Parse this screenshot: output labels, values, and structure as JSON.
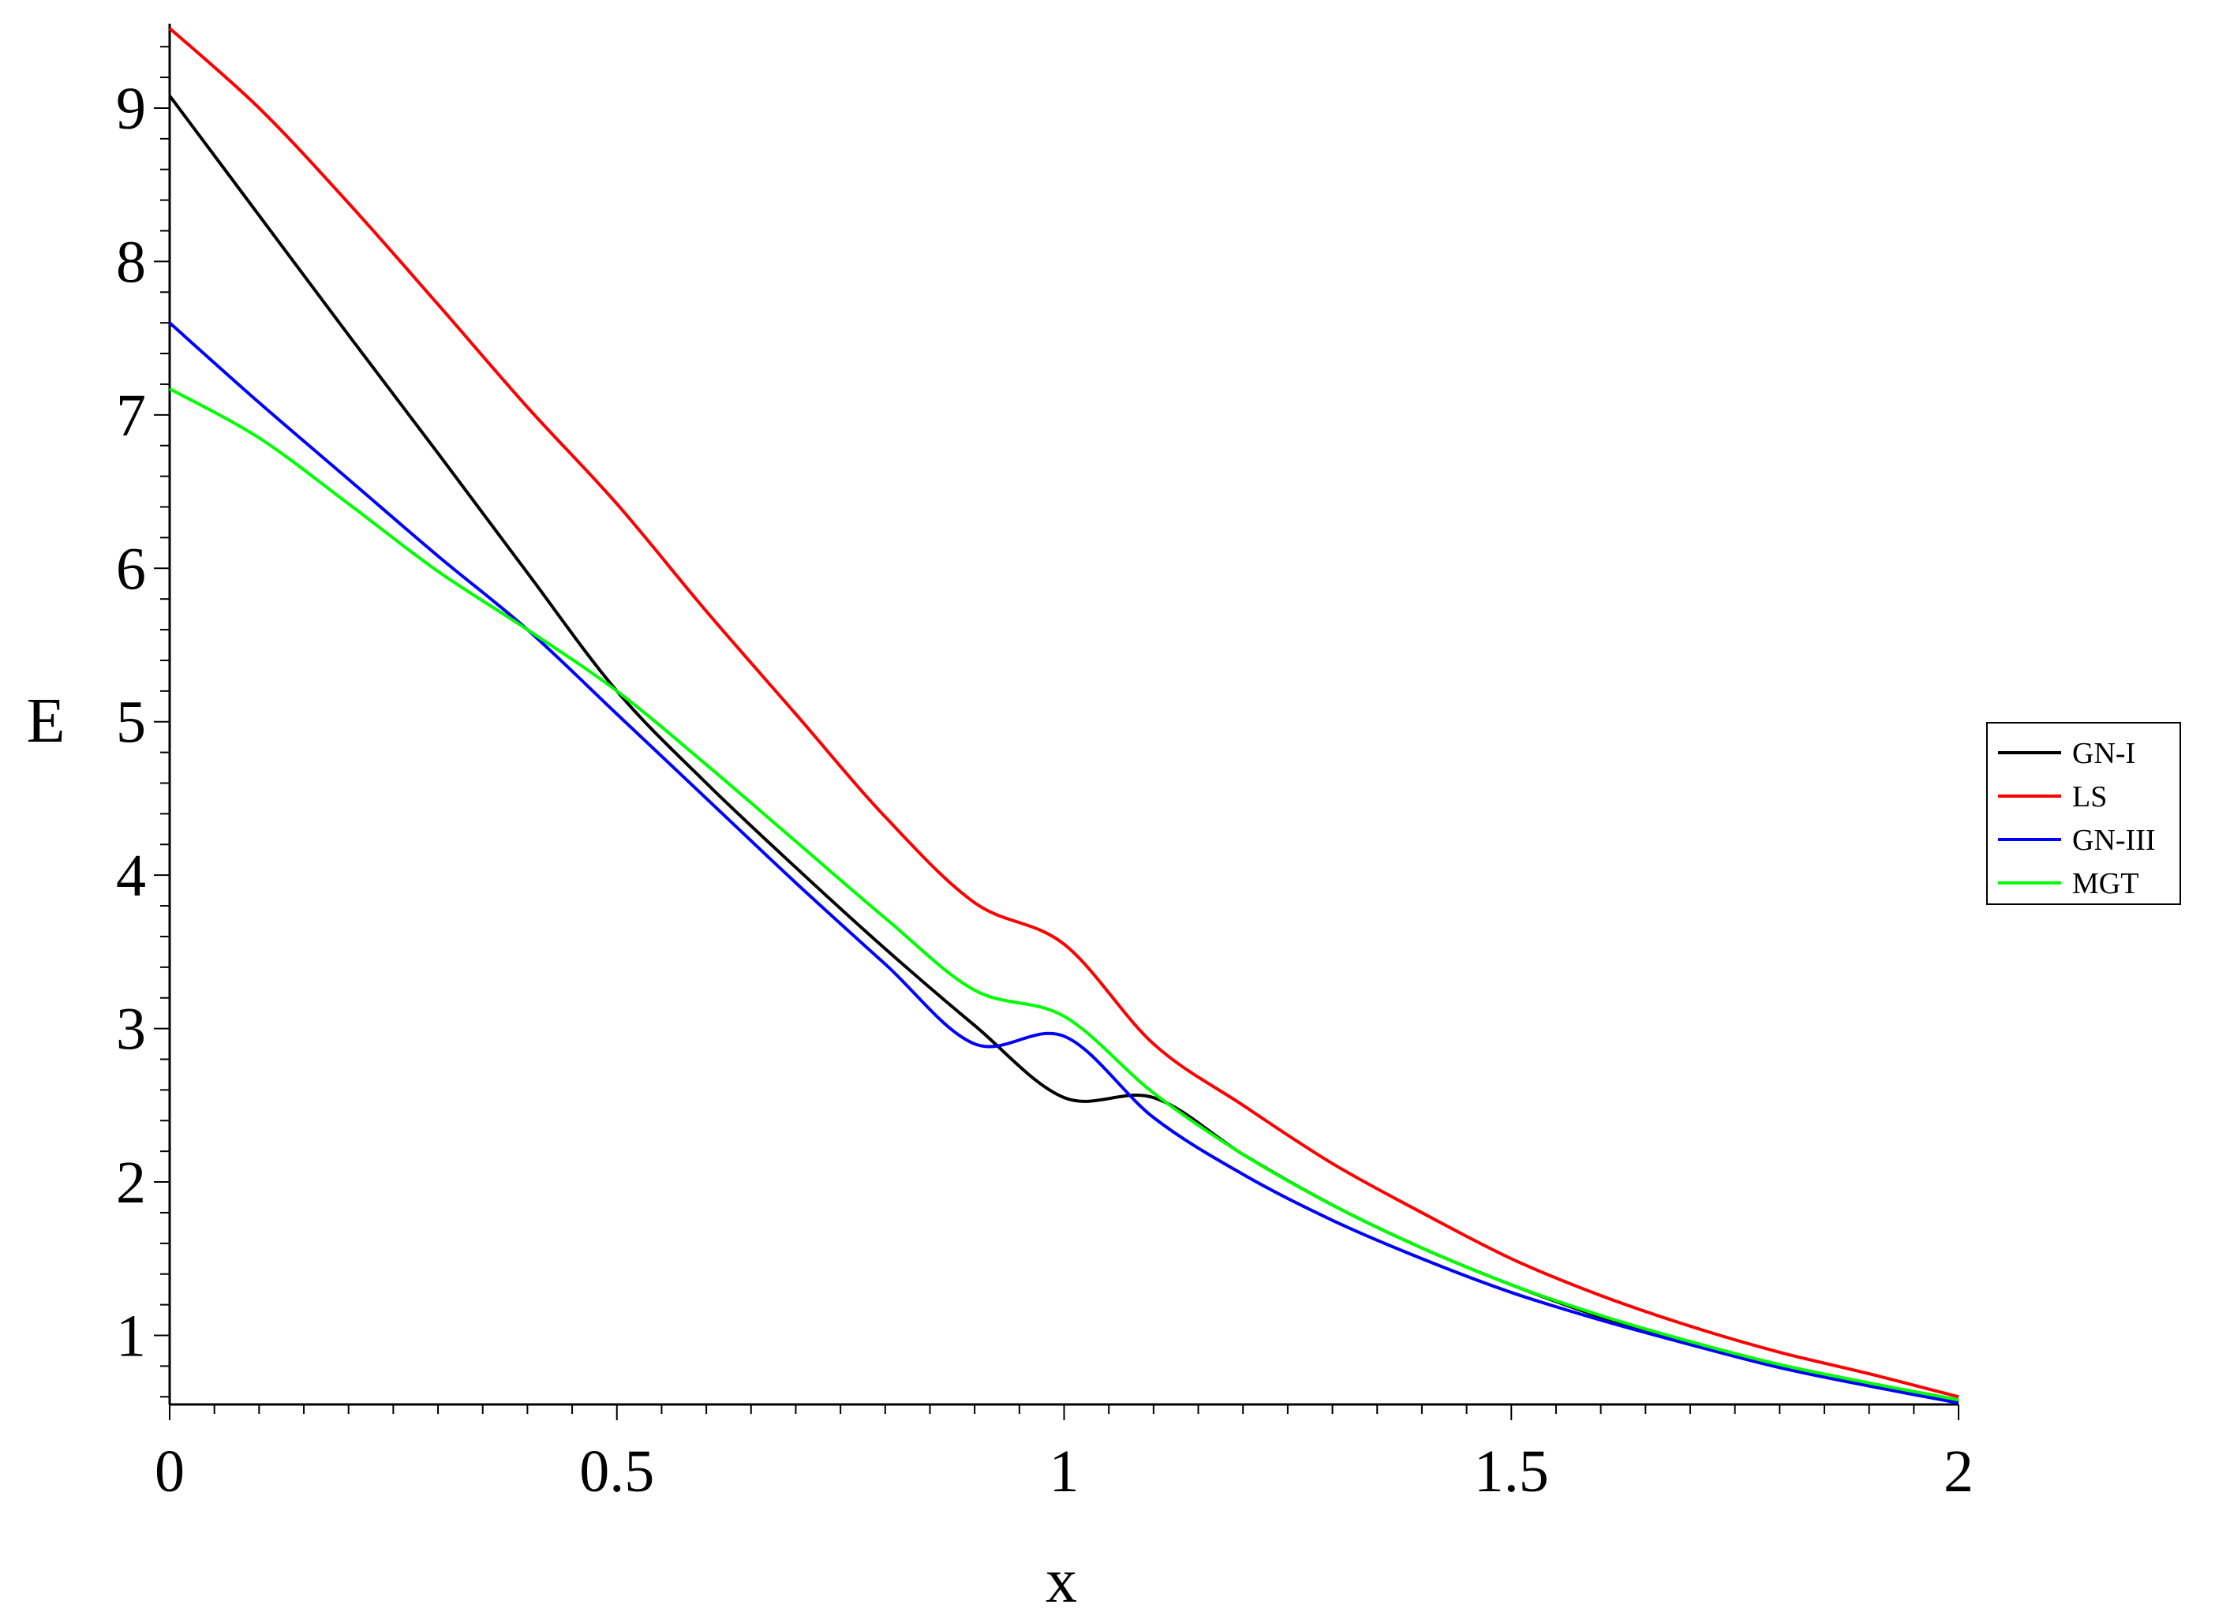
{
  "chart_data": {
    "type": "line",
    "title": "",
    "xlabel": "x",
    "ylabel": "E",
    "xlim": [
      0,
      2
    ],
    "ylim": [
      0.55,
      9.55
    ],
    "x_ticks": [
      "0",
      "0.5",
      "1",
      "1.5",
      "2"
    ],
    "y_ticks": [
      "1",
      "2",
      "3",
      "4",
      "5",
      "6",
      "7",
      "8",
      "9"
    ],
    "grid": false,
    "legend_position": "right",
    "series": [
      {
        "name": "GN-I",
        "color": "#000000",
        "points": [
          [
            0,
            9.08
          ],
          [
            0.1,
            8.3
          ],
          [
            0.2,
            7.52
          ],
          [
            0.3,
            6.75
          ],
          [
            0.4,
            5.97
          ],
          [
            0.5,
            5.2
          ],
          [
            0.6,
            4.6
          ],
          [
            0.7,
            4.05
          ],
          [
            0.8,
            3.52
          ],
          [
            0.9,
            3.02
          ],
          [
            1.0,
            2.55
          ],
          [
            1.1,
            2.55
          ],
          [
            1.2,
            2.18
          ],
          [
            1.3,
            1.85
          ],
          [
            1.4,
            1.57
          ],
          [
            1.5,
            1.33
          ],
          [
            1.6,
            1.12
          ],
          [
            1.7,
            0.95
          ],
          [
            1.8,
            0.8
          ],
          [
            1.9,
            0.68
          ],
          [
            2.0,
            0.57
          ]
        ]
      },
      {
        "name": "LS",
        "color": "#ff0000",
        "points": [
          [
            0,
            9.52
          ],
          [
            0.1,
            9.0
          ],
          [
            0.2,
            8.38
          ],
          [
            0.3,
            7.72
          ],
          [
            0.4,
            7.05
          ],
          [
            0.5,
            6.42
          ],
          [
            0.6,
            5.72
          ],
          [
            0.7,
            5.05
          ],
          [
            0.8,
            4.38
          ],
          [
            0.9,
            3.82
          ],
          [
            1.0,
            3.55
          ],
          [
            1.1,
            2.9
          ],
          [
            1.2,
            2.5
          ],
          [
            1.3,
            2.12
          ],
          [
            1.4,
            1.8
          ],
          [
            1.5,
            1.5
          ],
          [
            1.6,
            1.26
          ],
          [
            1.7,
            1.06
          ],
          [
            1.8,
            0.89
          ],
          [
            1.9,
            0.75
          ],
          [
            2.0,
            0.6
          ]
        ]
      },
      {
        "name": "GN-III",
        "color": "#0000ff",
        "points": [
          [
            0,
            7.6
          ],
          [
            0.1,
            7.08
          ],
          [
            0.2,
            6.58
          ],
          [
            0.3,
            6.08
          ],
          [
            0.4,
            5.6
          ],
          [
            0.5,
            5.05
          ],
          [
            0.6,
            4.5
          ],
          [
            0.7,
            3.95
          ],
          [
            0.8,
            3.42
          ],
          [
            0.9,
            2.9
          ],
          [
            1.0,
            2.95
          ],
          [
            1.1,
            2.42
          ],
          [
            1.2,
            2.05
          ],
          [
            1.3,
            1.75
          ],
          [
            1.4,
            1.5
          ],
          [
            1.5,
            1.28
          ],
          [
            1.6,
            1.1
          ],
          [
            1.7,
            0.94
          ],
          [
            1.8,
            0.79
          ],
          [
            1.9,
            0.67
          ],
          [
            2.0,
            0.56
          ]
        ]
      },
      {
        "name": "MGT",
        "color": "#00ff00",
        "points": [
          [
            0,
            7.17
          ],
          [
            0.1,
            6.85
          ],
          [
            0.2,
            6.42
          ],
          [
            0.3,
            5.98
          ],
          [
            0.4,
            5.6
          ],
          [
            0.5,
            5.2
          ],
          [
            0.6,
            4.72
          ],
          [
            0.7,
            4.22
          ],
          [
            0.8,
            3.72
          ],
          [
            0.9,
            3.25
          ],
          [
            1.0,
            3.08
          ],
          [
            1.1,
            2.58
          ],
          [
            1.2,
            2.18
          ],
          [
            1.3,
            1.85
          ],
          [
            1.4,
            1.57
          ],
          [
            1.5,
            1.33
          ],
          [
            1.6,
            1.13
          ],
          [
            1.7,
            0.96
          ],
          [
            1.8,
            0.81
          ],
          [
            1.9,
            0.69
          ],
          [
            2.0,
            0.58
          ]
        ]
      }
    ]
  }
}
